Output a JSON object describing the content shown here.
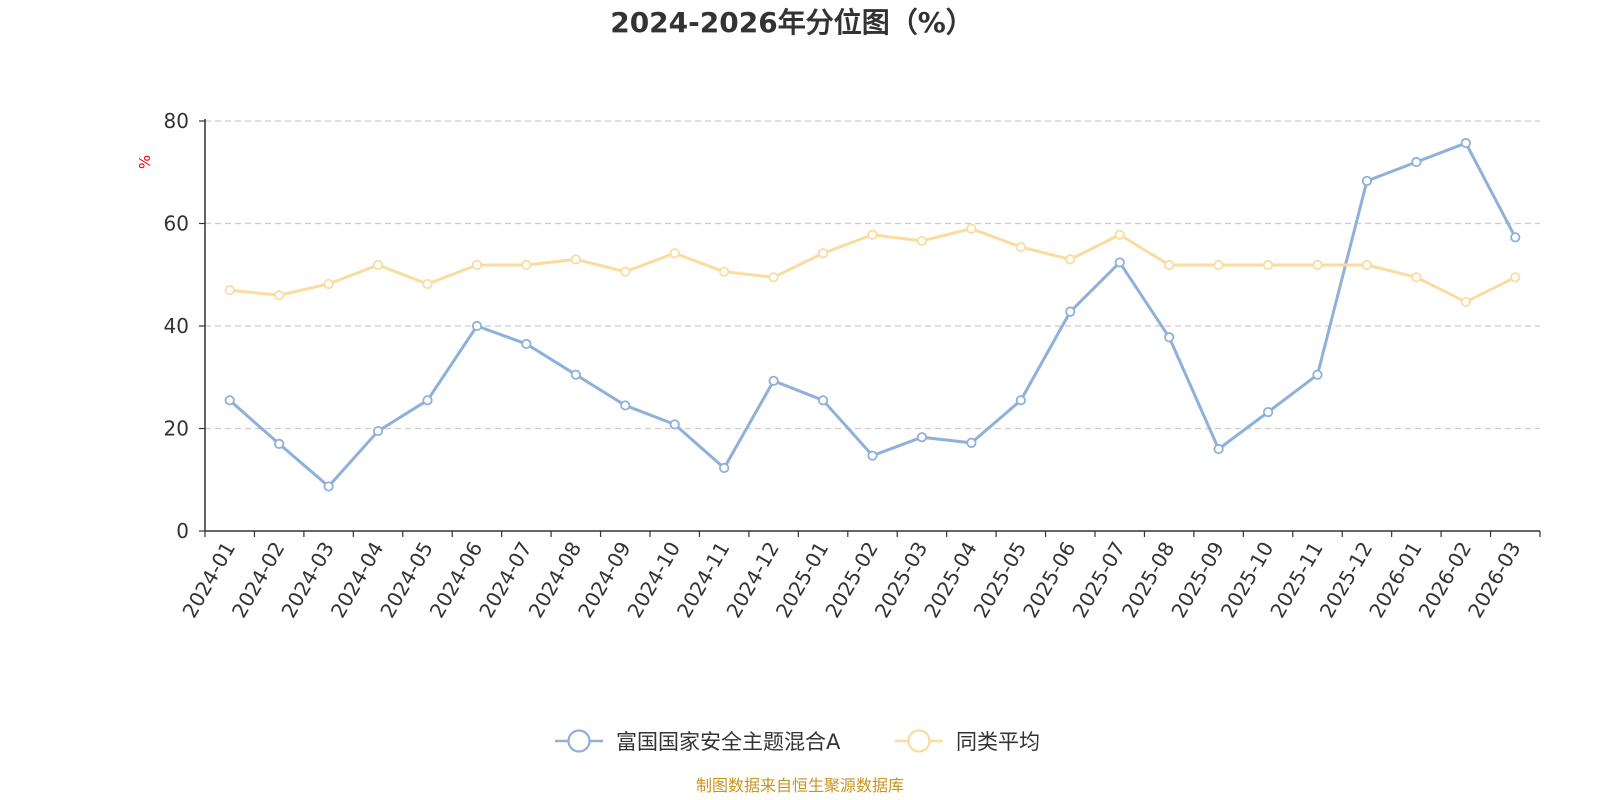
{
  "chart_data": {
    "type": "line",
    "title": "2024-2026年分位图（%）",
    "ylabel": "%",
    "ylim": [
      0,
      80
    ],
    "yticks": [
      0,
      20,
      40,
      60,
      80
    ],
    "grid": true,
    "legend_position": "bottom",
    "categories": [
      "2024-01",
      "2024-02",
      "2024-03",
      "2024-04",
      "2024-05",
      "2024-06",
      "2024-07",
      "2024-08",
      "2024-09",
      "2024-10",
      "2024-11",
      "2024-12",
      "2025-01",
      "2025-02",
      "2025-03",
      "2025-04",
      "2025-05",
      "2025-06",
      "2025-07",
      "2025-08",
      "2025-09",
      "2025-10",
      "2025-11",
      "2025-12",
      "2026-01",
      "2026-02",
      "2026-03"
    ],
    "series": [
      {
        "name": "富国国家安全主题混合A",
        "color": "#8eb0da",
        "values": [
          25.5,
          17,
          8.7,
          19.5,
          25.5,
          40,
          36.5,
          30.5,
          24.5,
          20.8,
          12.3,
          29.3,
          25.5,
          14.7,
          18.3,
          17.2,
          25.5,
          42.8,
          52.4,
          37.8,
          16,
          23.2,
          30.5,
          68.3,
          72,
          75.7,
          57.3
        ]
      },
      {
        "name": "同类平均",
        "color": "#fbdba0",
        "values": [
          47,
          46,
          48.2,
          51.9,
          48.2,
          51.9,
          51.9,
          53,
          50.6,
          54.2,
          50.6,
          49.5,
          54.2,
          57.8,
          56.6,
          59,
          55.4,
          53,
          57.8,
          51.9,
          51.9,
          51.9,
          51.9,
          51.9,
          49.5,
          44.7,
          49.5
        ]
      }
    ],
    "source_note": "制图数据来自恒生聚源数据库"
  }
}
